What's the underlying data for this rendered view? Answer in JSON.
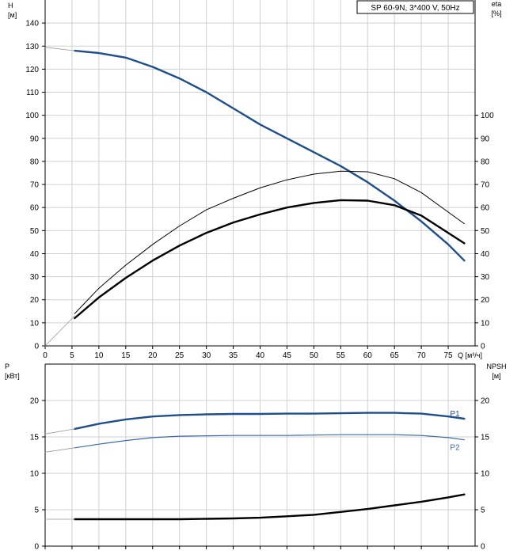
{
  "chart_data": [
    {
      "type": "line",
      "title": "SP 60-9N, 3*400 V, 50Hz",
      "xlabel": "Q [м³/ч]",
      "ylabel": "H\n[м]",
      "y2label": "eta\n[%]",
      "xlim": [
        0,
        80
      ],
      "ylim": [
        0,
        150
      ],
      "y2lim": [
        0,
        150
      ],
      "xticks": [
        0,
        5,
        10,
        15,
        20,
        25,
        30,
        35,
        40,
        45,
        50,
        55,
        60,
        65,
        70,
        75
      ],
      "yticks": [
        0,
        10,
        20,
        30,
        40,
        50,
        60,
        70,
        80,
        90,
        100,
        110,
        120,
        130,
        140
      ],
      "y2ticks": [
        0,
        10,
        20,
        30,
        40,
        50,
        60,
        70,
        80,
        90,
        100
      ],
      "grid": true,
      "series": [
        {
          "name": "",
          "color": "#1f4e8c",
          "width": 2.4,
          "x": [
            5.5,
            10,
            15,
            20,
            25,
            30,
            35,
            40,
            45,
            50,
            55,
            60,
            65,
            70,
            75,
            78
          ],
          "y": [
            128,
            127,
            125,
            121,
            116,
            110,
            103,
            96,
            90,
            84,
            78,
            71,
            63,
            54,
            44,
            37
          ]
        },
        {
          "name": "",
          "color": "#000000",
          "width": 1,
          "x": [
            5.5,
            10,
            15,
            20,
            25,
            30,
            35,
            40,
            45,
            50,
            55,
            60,
            65,
            70,
            75,
            78
          ],
          "y": [
            14,
            25,
            35,
            44,
            52,
            59,
            64,
            68.5,
            72,
            74.5,
            75.8,
            75.5,
            72.5,
            66.5,
            58,
            53
          ]
        },
        {
          "name": "",
          "color": "#000000",
          "width": 2.4,
          "x": [
            5.5,
            10,
            15,
            20,
            25,
            30,
            35,
            40,
            45,
            50,
            55,
            60,
            65,
            70,
            75,
            78
          ],
          "y": [
            12,
            21,
            29.5,
            37,
            43.5,
            49,
            53.5,
            57,
            60,
            62,
            63.2,
            63,
            61,
            56.5,
            49,
            44.5
          ]
        },
        {
          "name": "",
          "color": "#999999",
          "width": 0.8,
          "x": [
            0,
            5.5
          ],
          "y": [
            129.5,
            128
          ]
        },
        {
          "name": "",
          "color": "#999999",
          "width": 0.8,
          "x": [
            0,
            5.5
          ],
          "y": [
            0,
            13
          ]
        }
      ]
    },
    {
      "type": "line",
      "title": "",
      "xlabel": "",
      "ylabel": "P\n[кВт]",
      "y2label": "NPSH\n[м]",
      "xlim": [
        0,
        80
      ],
      "ylim": [
        0,
        25
      ],
      "y2lim": [
        0,
        25
      ],
      "xticks": [
        0,
        5,
        10,
        15,
        20,
        25,
        30,
        35,
        40,
        45,
        50,
        55,
        60,
        65,
        70,
        75
      ],
      "yticks": [
        0,
        5,
        10,
        15,
        20
      ],
      "y2ticks": [
        0,
        5,
        10,
        15,
        20
      ],
      "grid": true,
      "series": [
        {
          "name": "P1",
          "color": "#1f4e8c",
          "width": 2.4,
          "x": [
            5.5,
            10,
            15,
            20,
            25,
            30,
            35,
            40,
            45,
            50,
            55,
            60,
            65,
            70,
            75,
            78
          ],
          "y": [
            16.1,
            16.8,
            17.4,
            17.8,
            18.0,
            18.1,
            18.15,
            18.15,
            18.2,
            18.2,
            18.25,
            18.3,
            18.3,
            18.2,
            17.8,
            17.5
          ]
        },
        {
          "name": "P2",
          "color": "#3a6aa8",
          "width": 1.2,
          "x": [
            5.5,
            10,
            15,
            20,
            25,
            30,
            35,
            40,
            45,
            50,
            55,
            60,
            65,
            70,
            75,
            78
          ],
          "y": [
            13.5,
            14.0,
            14.5,
            14.9,
            15.1,
            15.15,
            15.2,
            15.2,
            15.2,
            15.25,
            15.3,
            15.3,
            15.3,
            15.2,
            14.9,
            14.6
          ]
        },
        {
          "name": "",
          "color": "#000000",
          "width": 2.4,
          "x": [
            5.5,
            10,
            15,
            20,
            25,
            30,
            35,
            40,
            45,
            50,
            55,
            60,
            65,
            70,
            75,
            78
          ],
          "y": [
            3.7,
            3.7,
            3.7,
            3.7,
            3.7,
            3.75,
            3.8,
            3.9,
            4.1,
            4.3,
            4.7,
            5.1,
            5.6,
            6.1,
            6.7,
            7.1
          ]
        },
        {
          "name": "",
          "color": "#999999",
          "width": 0.8,
          "x": [
            0,
            5.5
          ],
          "y": [
            15.4,
            16.1
          ]
        },
        {
          "name": "",
          "color": "#999999",
          "width": 0.8,
          "x": [
            0,
            5.5
          ],
          "y": [
            12.9,
            13.5
          ]
        },
        {
          "name": "",
          "color": "#999999",
          "width": 0.8,
          "x": [
            0,
            5.5
          ],
          "y": [
            3.7,
            3.7
          ]
        }
      ]
    }
  ]
}
